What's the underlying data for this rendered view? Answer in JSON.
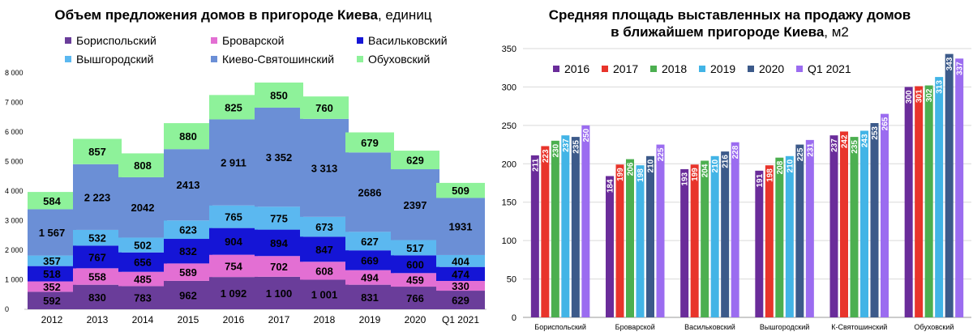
{
  "chart_data": [
    {
      "type": "bar",
      "stacked": true,
      "title": "Объем предложения домов в пригороде Киева",
      "title_unit": ", единиц",
      "categories": [
        "2012",
        "2013",
        "2014",
        "2015",
        "2016",
        "2017",
        "2018",
        "2019",
        "2020",
        "Q1 2021"
      ],
      "ylim": [
        0,
        8000
      ],
      "yticks": [
        0,
        1000,
        2000,
        3000,
        4000,
        5000,
        6000,
        7000,
        8000
      ],
      "ytick_labels": [
        "0",
        "1 000",
        "2 000",
        "3 000",
        "4 000",
        "5 000",
        "6 000",
        "7 000",
        "8 000"
      ],
      "legend_placement": "top",
      "grid": false,
      "series": [
        {
          "name": "Бориспольский",
          "color": "#6a3d9a",
          "values": [
            592,
            830,
            783,
            962,
            1092,
            1100,
            1001,
            831,
            766,
            629
          ],
          "labels": [
            "592",
            "830",
            "783",
            "962",
            "1 092",
            "1 100",
            "1 001",
            "831",
            "766",
            "629"
          ]
        },
        {
          "name": "Броварской",
          "color": "#e36fd3",
          "values": [
            352,
            558,
            485,
            589,
            754,
            702,
            608,
            494,
            459,
            330
          ],
          "labels": [
            "352",
            "558",
            "485",
            "589",
            "754",
            "702",
            "608",
            "494",
            "459",
            "330"
          ]
        },
        {
          "name": "Васильковский",
          "color": "#1515d6",
          "values": [
            518,
            767,
            656,
            832,
            904,
            894,
            847,
            669,
            600,
            474
          ],
          "labels": [
            "518",
            "767",
            "656",
            "832",
            "904",
            "894",
            "847",
            "669",
            "600",
            "474"
          ]
        },
        {
          "name": "Вышгородский",
          "color": "#5bb8f0",
          "values": [
            357,
            532,
            502,
            623,
            765,
            775,
            673,
            627,
            517,
            404
          ],
          "labels": [
            "357",
            "532",
            "502",
            "623",
            "765",
            "775",
            "673",
            "627",
            "517",
            "404"
          ]
        },
        {
          "name": "Киево-Святошинский",
          "color": "#6b8fd6",
          "values": [
            1567,
            2223,
            2042,
            2413,
            2911,
            3352,
            3313,
            2686,
            2397,
            1931
          ],
          "labels": [
            "1 567",
            "2 223",
            "2042",
            "2413",
            "2 911",
            "3 352",
            "3 313",
            "2686",
            "2397",
            "1931"
          ]
        },
        {
          "name": "Обуховский",
          "color": "#8ef29a",
          "values": [
            584,
            857,
            808,
            880,
            825,
            850,
            760,
            679,
            629,
            509
          ],
          "labels": [
            "584",
            "857",
            "808",
            "880",
            "825",
            "850",
            "760",
            "679",
            "629",
            "509"
          ]
        }
      ]
    },
    {
      "type": "bar",
      "title_line1": "Средняя площадь выставленных на продажу домов",
      "title_line2": "в ближайшем пригороде Киева",
      "title_unit": ", м2",
      "categories": [
        "Бориспольский",
        "Броварской",
        "Васильковский",
        "Вышгородский",
        "К-Святошинский",
        "Обуховский"
      ],
      "ylim": [
        0,
        350
      ],
      "yticks": [
        0,
        50,
        100,
        150,
        200,
        250,
        300,
        350
      ],
      "grid": true,
      "legend_placement": "top-left",
      "series": [
        {
          "name": "2016",
          "color": "#6a2c9a",
          "values": [
            211,
            184,
            193,
            191,
            237,
            300
          ]
        },
        {
          "name": "2017",
          "color": "#e8342b",
          "values": [
            223,
            199,
            199,
            198,
            242,
            301
          ]
        },
        {
          "name": "2018",
          "color": "#4caf50",
          "values": [
            230,
            206,
            204,
            208,
            235,
            302
          ]
        },
        {
          "name": "2019",
          "color": "#42b4e6",
          "values": [
            237,
            198,
            210,
            210,
            243,
            313
          ]
        },
        {
          "name": "2020",
          "color": "#3c5a8a",
          "values": [
            235,
            210,
            216,
            225,
            253,
            343
          ]
        },
        {
          "name": "Q1 2021",
          "color": "#9b6cf0",
          "values": [
            250,
            225,
            228,
            231,
            265,
            337
          ]
        }
      ]
    }
  ]
}
